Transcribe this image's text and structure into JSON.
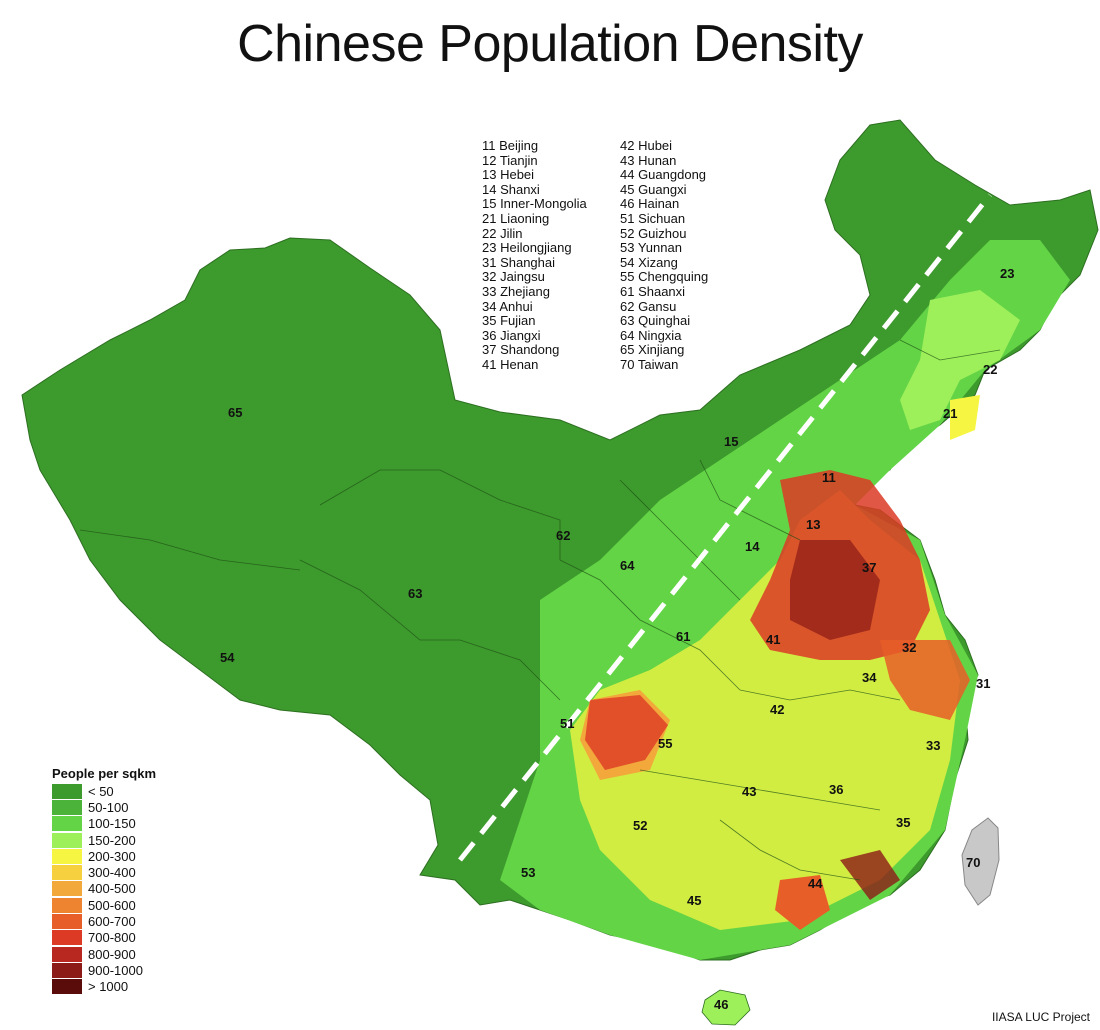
{
  "title": "Chinese Population Density",
  "credit": "IIASA LUC Project",
  "province_key": {
    "column_1": [
      "11 Beijing",
      "12 Tianjin",
      "13 Hebei",
      "14 Shanxi",
      "15 Inner-Mongolia",
      "21 Liaoning",
      "22 Jilin",
      "23 Heilongjiang",
      "31 Shanghai",
      "32 Jaingsu",
      "33 Zhejiang",
      "34 Anhui",
      "35 Fujian",
      "36 Jiangxi",
      "37 Shandong",
      "41 Henan"
    ],
    "column_2": [
      "42 Hubei",
      "43 Hunan",
      "44 Guangdong",
      "45 Guangxi",
      "46 Hainan",
      "51 Sichuan",
      "52 Guizhou",
      "53 Yunnan",
      "54 Xizang",
      "55 Chengquing",
      "61 Shaanxi",
      "62 Gansu",
      "63 Quinghai",
      "64 Ningxia",
      "65 Xinjiang",
      "70 Taiwan"
    ]
  },
  "legend": {
    "title": "People per sqkm",
    "items": [
      {
        "label": "< 50",
        "color": "#3d9a2d"
      },
      {
        "label": "50-100",
        "color": "#4cb33a"
      },
      {
        "label": "100-150",
        "color": "#63d446"
      },
      {
        "label": "150-200",
        "color": "#9ef05a"
      },
      {
        "label": "200-300",
        "color": "#f5f542"
      },
      {
        "label": "300-400",
        "color": "#f7d040"
      },
      {
        "label": "400-500",
        "color": "#f2a83a"
      },
      {
        "label": "500-600",
        "color": "#ee8430"
      },
      {
        "label": "600-700",
        "color": "#e85e28"
      },
      {
        "label": "700-800",
        "color": "#dc3a24"
      },
      {
        "label": "800-900",
        "color": "#b82820"
      },
      {
        "label": "900-1000",
        "color": "#8c1a16"
      },
      {
        "label": "> 1000",
        "color": "#5a0c0a"
      }
    ]
  },
  "province_labels": [
    "65",
    "15",
    "23",
    "22",
    "21",
    "11",
    "13",
    "14",
    "62",
    "64",
    "37",
    "63",
    "61",
    "41",
    "32",
    "31",
    "34",
    "54",
    "51",
    "42",
    "55",
    "33",
    "43",
    "36",
    "52",
    "35",
    "70",
    "53",
    "44",
    "45",
    "46"
  ]
}
